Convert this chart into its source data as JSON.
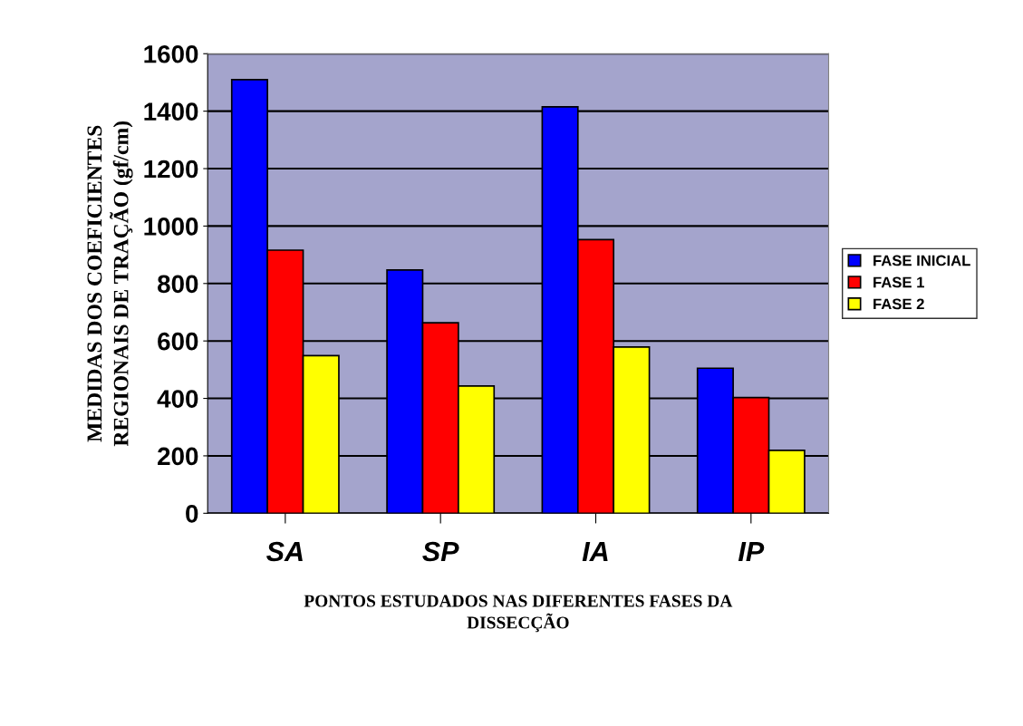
{
  "chart_data": {
    "type": "bar",
    "xlabel": "PONTOS ESTUDADOS NAS DIFERENTES FASES DA\nDISSECÇÃO",
    "ylabel": "MEDIDAS DOS COEFICIENTES\nREGIONAIS DE TRAÇÃO (gf/cm)",
    "categories": [
      "SA",
      "SP",
      "IA",
      "IP"
    ],
    "series": [
      {
        "name": "FASE INICIAL",
        "color": "#0000ff",
        "values": [
          1510,
          847,
          1415,
          505
        ]
      },
      {
        "name": "FASE 1",
        "color": "#ff0000",
        "values": [
          916,
          663,
          953,
          403
        ]
      },
      {
        "name": "FASE 2",
        "color": "#ffff00",
        "values": [
          549,
          443,
          579,
          219
        ]
      }
    ],
    "ylim": [
      0,
      1600
    ],
    "yticks": [
      0,
      200,
      400,
      600,
      800,
      1000,
      1200,
      1400,
      1600
    ],
    "grid": "y",
    "legend": "right"
  }
}
